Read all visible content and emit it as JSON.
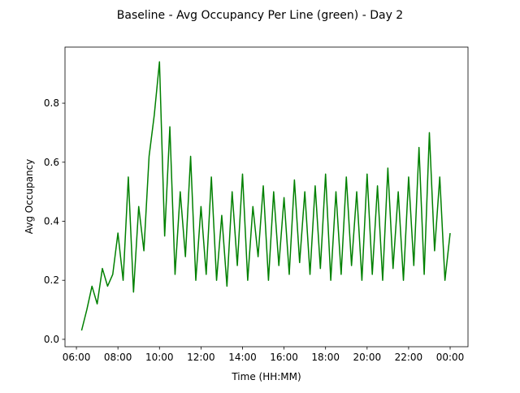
{
  "chart_data": {
    "type": "line",
    "title": "Baseline - Avg Occupancy Per Line (green) - Day 2",
    "x_label": "Time (HH:MM)",
    "y_label": "Avg Occupancy",
    "x": [
      6.25,
      6.5,
      6.75,
      7.0,
      7.25,
      7.5,
      7.75,
      8.0,
      8.25,
      8.5,
      8.75,
      9.0,
      9.25,
      9.5,
      9.75,
      10.0,
      10.25,
      10.5,
      10.75,
      11.0,
      11.25,
      11.5,
      11.75,
      12.0,
      12.25,
      12.5,
      12.75,
      13.0,
      13.25,
      13.5,
      13.75,
      14.0,
      14.25,
      14.5,
      14.75,
      15.0,
      15.25,
      15.5,
      15.75,
      16.0,
      16.25,
      16.5,
      16.75,
      17.0,
      17.25,
      17.5,
      17.75,
      18.0,
      18.25,
      18.5,
      18.75,
      19.0,
      19.25,
      19.5,
      19.75,
      20.0,
      20.25,
      20.5,
      20.75,
      21.0,
      21.25,
      21.5,
      21.75,
      22.0,
      22.25,
      22.5,
      22.75,
      23.0,
      23.25,
      23.5,
      23.75,
      24.0
    ],
    "series": [
      {
        "name": "green",
        "color": "#008000",
        "values": [
          0.03,
          0.1,
          0.18,
          0.12,
          0.24,
          0.18,
          0.22,
          0.36,
          0.2,
          0.55,
          0.16,
          0.45,
          0.3,
          0.62,
          0.76,
          0.94,
          0.35,
          0.72,
          0.22,
          0.5,
          0.28,
          0.62,
          0.2,
          0.45,
          0.22,
          0.55,
          0.2,
          0.42,
          0.18,
          0.5,
          0.25,
          0.56,
          0.2,
          0.45,
          0.28,
          0.52,
          0.2,
          0.5,
          0.25,
          0.48,
          0.22,
          0.54,
          0.26,
          0.5,
          0.22,
          0.52,
          0.24,
          0.56,
          0.2,
          0.5,
          0.22,
          0.55,
          0.25,
          0.5,
          0.2,
          0.56,
          0.22,
          0.52,
          0.2,
          0.58,
          0.24,
          0.5,
          0.2,
          0.55,
          0.25,
          0.65,
          0.22,
          0.7,
          0.3,
          0.55,
          0.2,
          0.36
        ]
      }
    ],
    "xlim": [
      5.45,
      24.86
    ],
    "xticks": [
      {
        "value": 6,
        "label": "06:00"
      },
      {
        "value": 8,
        "label": "08:00"
      },
      {
        "value": 10,
        "label": "10:00"
      },
      {
        "value": 12,
        "label": "12:00"
      },
      {
        "value": 14,
        "label": "14:00"
      },
      {
        "value": 16,
        "label": "16:00"
      },
      {
        "value": 18,
        "label": "18:00"
      },
      {
        "value": 20,
        "label": "20:00"
      },
      {
        "value": 22,
        "label": "22:00"
      },
      {
        "value": 24,
        "label": "00:00"
      }
    ],
    "ylim": [
      -0.025,
      0.99
    ],
    "yticks": [
      {
        "value": 0,
        "label": "0.0"
      },
      0.2,
      0.4,
      0.6,
      0.8
    ]
  }
}
